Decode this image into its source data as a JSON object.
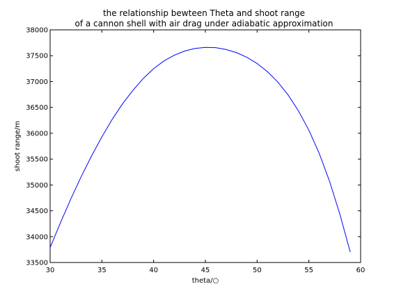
{
  "chart_data": {
    "type": "line",
    "title": "the relationship bewteen Theta and shoot range\nof a cannon shell with air drag under adiabatic approximation",
    "title_lines": [
      "the relationship bewteen Theta and shoot range",
      "of a cannon shell with air drag under adiabatic approximation"
    ],
    "xlabel": "theta/○",
    "ylabel": "shoot range/m",
    "xlim": [
      30,
      60
    ],
    "ylim": [
      33500,
      38000
    ],
    "xticks": [
      30,
      35,
      40,
      45,
      50,
      55,
      60
    ],
    "yticks": [
      33500,
      34000,
      34500,
      35000,
      35500,
      36000,
      36500,
      37000,
      37500,
      38000
    ],
    "grid": false,
    "line_color": "#0000ff",
    "series": [
      {
        "x": [
          30,
          31,
          32,
          33,
          34,
          35,
          36,
          37,
          38,
          39,
          40,
          41,
          42,
          43,
          44,
          45,
          46,
          47,
          48,
          49,
          50,
          51,
          52,
          53,
          54,
          55,
          56,
          57,
          58,
          59
        ],
        "y": [
          33790,
          34270,
          34730,
          35160,
          35560,
          35930,
          36270,
          36570,
          36830,
          37060,
          37250,
          37400,
          37510,
          37590,
          37640,
          37660,
          37655,
          37620,
          37560,
          37470,
          37350,
          37190,
          36990,
          36740,
          36430,
          36060,
          35610,
          35070,
          34430,
          33700
        ]
      }
    ]
  }
}
